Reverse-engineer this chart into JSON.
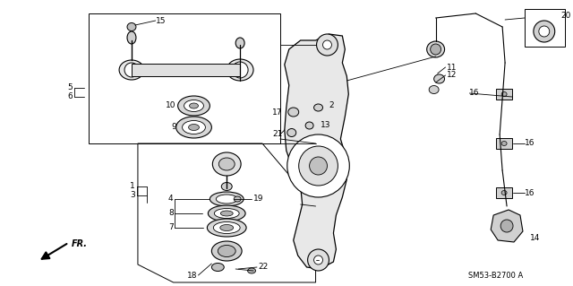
{
  "bg_color": "#ffffff",
  "diagram_code": "SM53-B2700 A",
  "fr_label": "FR.",
  "fig_width": 6.4,
  "fig_height": 3.19,
  "dpi": 100,
  "lc": "#000000",
  "tc": "#000000",
  "gray": "#888888"
}
